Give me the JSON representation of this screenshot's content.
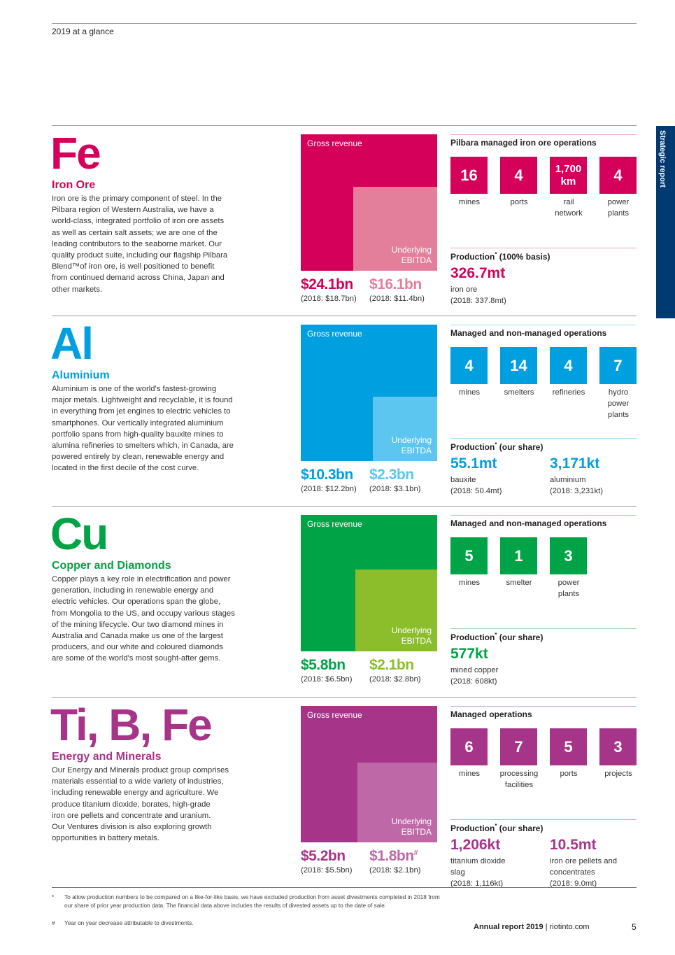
{
  "header": {
    "title": "2019 at a glance"
  },
  "side_tab": {
    "label": "Strategic report",
    "color": "#003a70"
  },
  "sections": [
    {
      "id": "iron-ore",
      "symbol": "Fe",
      "name": "Iron Ore",
      "color": "#d4005a",
      "light": "#e47f9b",
      "rule": "#e8a5b9",
      "desc": [
        "Iron ore is the primary component of steel. In the",
        "Pilbara region of Western Australia, we have a",
        "world-class, integrated portfolio of iron ore assets",
        "as well as certain salt assets; we are one of the",
        "leading contributors to the seaborne market. Our",
        "quality product suite, including our flagship Pilbara",
        "Blend™of iron ore, is well positioned to benefit",
        "from continued demand across China, Japan and",
        "other markets."
      ],
      "gross_label": "Gross revenue",
      "ebitda_label": [
        "Underlying",
        "EBITDA"
      ],
      "revenue": "$24.1bn",
      "revenue_prior": "(2018: $18.7bn)",
      "ebitda": "$16.1bn",
      "ebitda_mark": "",
      "ebitda_prior": "(2018: $11.4bn)",
      "ops_heading": "Pilbara managed iron ore operations",
      "tiles": [
        {
          "value": "16",
          "label": [
            "mines"
          ]
        },
        {
          "value": "4",
          "label": [
            "ports"
          ]
        },
        {
          "value": "1,700 km",
          "label": [
            "rail",
            "network"
          ],
          "small": true
        },
        {
          "value": "4",
          "label": [
            "power",
            "plants"
          ]
        }
      ],
      "prod_heading": "Production",
      "prod_mark": "*",
      "prod_basis": " (100% basis)",
      "production": [
        {
          "value": "326.7mt",
          "lines": [
            "iron ore",
            "(2018: 337.8mt)"
          ]
        }
      ]
    },
    {
      "id": "aluminium",
      "symbol": "Al",
      "name": "Aluminium",
      "color": "#009fe0",
      "light": "#5cc6f0",
      "rule": "#9fd9f3",
      "desc": [
        "Aluminium is one of the world's fastest-growing",
        "major metals. Lightweight and recyclable, it is found",
        "in everything from jet engines to electric vehicles to",
        "smartphones. Our vertically integrated aluminium",
        "portfolio spans from high-quality bauxite mines to",
        "alumina refineries to smelters which, in Canada, are",
        "powered entirely by clean, renewable energy and",
        "located in the first decile of the cost curve."
      ],
      "gross_label": "Gross revenue",
      "ebitda_label": [
        "Underlying",
        "EBITDA"
      ],
      "revenue": "$10.3bn",
      "revenue_prior": "(2018: $12.2bn)",
      "ebitda": "$2.3bn",
      "ebitda_mark": "",
      "ebitda_prior": "(2018: $3.1bn)",
      "ops_heading": "Managed and non-managed operations",
      "tiles": [
        {
          "value": "4",
          "label": [
            "mines"
          ]
        },
        {
          "value": "14",
          "label": [
            "smelters"
          ]
        },
        {
          "value": "4",
          "label": [
            "refineries"
          ]
        },
        {
          "value": "7",
          "label": [
            "hydro",
            "power",
            "plants"
          ]
        }
      ],
      "prod_heading": "Production",
      "prod_mark": "*",
      "prod_basis": " (our share)",
      "production": [
        {
          "value": "55.1mt",
          "lines": [
            "bauxite",
            "(2018: 50.4mt)"
          ]
        },
        {
          "value": "3,171kt",
          "lines": [
            "aluminium",
            "(2018: 3,231kt)"
          ]
        }
      ]
    },
    {
      "id": "copper-diamonds",
      "symbol": "Cu",
      "name": "Copper and Diamonds",
      "color": "#00a346",
      "light": "#8cbd2b",
      "rule": "#9fd4b1",
      "desc": [
        "Copper plays a key role in electrification and power",
        "generation, including in renewable energy and",
        "electric vehicles. Our operations span the globe,",
        "from Mongolia to the US, and occupy various stages",
        "of the mining lifecycle. Our two diamond mines in",
        "Australia and Canada make us one of the largest",
        "producers, and our white and coloured diamonds",
        "are some of the world's most sought-after gems."
      ],
      "gross_label": "Gross revenue",
      "ebitda_label": [
        "Underlying",
        "EBITDA"
      ],
      "revenue": "$5.8bn",
      "revenue_prior": "(2018: $6.5bn)",
      "ebitda": "$2.1bn",
      "ebitda_mark": "",
      "ebitda_prior": "(2018: $2.8bn)",
      "ops_heading": "Managed and non-managed operations",
      "tiles": [
        {
          "value": "5",
          "label": [
            "mines"
          ]
        },
        {
          "value": "1",
          "label": [
            "smelter"
          ]
        },
        {
          "value": "3",
          "label": [
            "power",
            "plants"
          ]
        }
      ],
      "prod_heading": "Production",
      "prod_mark": "*",
      "prod_basis": " (our share)",
      "production": [
        {
          "value": "577kt",
          "lines": [
            "mined copper",
            "(2018: 608kt)"
          ]
        }
      ]
    },
    {
      "id": "energy-minerals",
      "symbol": "Ti, B, Fe",
      "name": "Energy and Minerals",
      "color": "#a6358a",
      "light": "#bf68a8",
      "rule": "#d6a6c9",
      "desc": [
        "Our Energy and Minerals product group comprises",
        "materials essential to a wide variety of industries,",
        "including renewable energy and agriculture. We",
        "produce titanium dioxide, borates, high-grade",
        "iron ore pellets and concentrate and uranium.",
        "Our Ventures division is also exploring growth",
        "opportunities in battery metals."
      ],
      "gross_label": "Gross revenue",
      "ebitda_label": [
        "Underlying",
        "EBITDA"
      ],
      "revenue": "$5.2bn",
      "revenue_prior": "(2018: $5.5bn)",
      "ebitda": "$1.8bn",
      "ebitda_mark": "#",
      "ebitda_prior": "(2018: $2.1bn)",
      "ops_heading": "Managed operations",
      "tiles": [
        {
          "value": "6",
          "label": [
            "mines"
          ]
        },
        {
          "value": "7",
          "label": [
            "processing",
            "facilities"
          ]
        },
        {
          "value": "5",
          "label": [
            "ports"
          ]
        },
        {
          "value": "3",
          "label": [
            "projects"
          ]
        }
      ],
      "prod_heading": "Production",
      "prod_mark": "*",
      "prod_basis": " (our share)",
      "production": [
        {
          "value": "1,206kt",
          "lines": [
            "titanium dioxide",
            "slag",
            "(2018: 1,116kt)"
          ]
        },
        {
          "value": "10.5mt",
          "lines": [
            "iron ore pellets and",
            "concentrates",
            "(2018: 9.0mt)"
          ]
        }
      ]
    }
  ],
  "footnotes": [
    {
      "mark": "*",
      "text": "To allow production numbers to be compared on a like-for-like basis, we have excluded production from asset divestments completed in 2018 from our share of prior year production data. The financial data above includes the results of divested assets up to the date of sale."
    },
    {
      "mark": "#",
      "text": "Year on year decrease attributable to divestments."
    }
  ],
  "footer": {
    "report": "Annual report 2019",
    "sep": " | ",
    "site": "riotinto.com",
    "page": "5"
  }
}
